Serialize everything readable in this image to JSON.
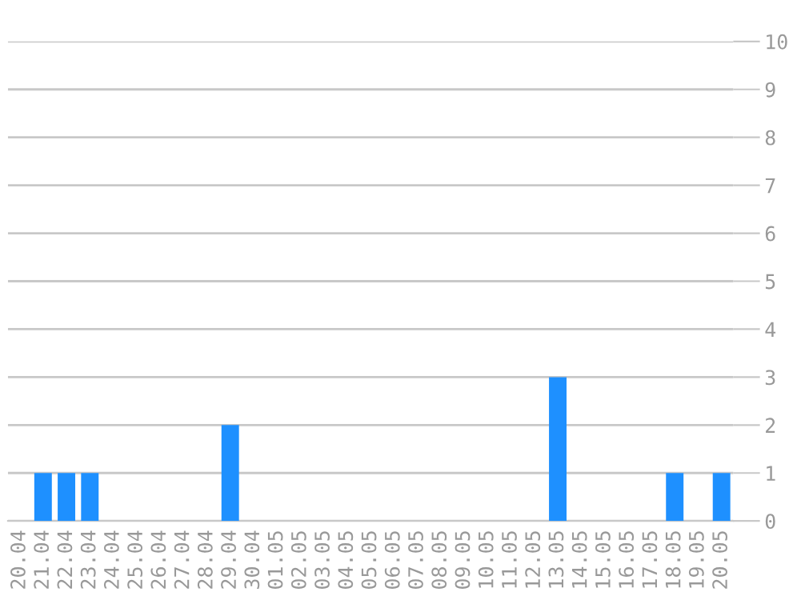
{
  "chart_data": {
    "type": "bar",
    "categories": [
      "20.04",
      "21.04",
      "22.04",
      "23.04",
      "24.04",
      "25.04",
      "26.04",
      "27.04",
      "28.04",
      "29.04",
      "30.04",
      "01.05",
      "02.05",
      "03.05",
      "04.05",
      "05.05",
      "06.05",
      "07.05",
      "08.05",
      "09.05",
      "10.05",
      "11.05",
      "12.05",
      "13.05",
      "14.05",
      "15.05",
      "16.05",
      "17.05",
      "18.05",
      "19.05",
      "20.05"
    ],
    "values": [
      0,
      1,
      1,
      1,
      0,
      0,
      0,
      0,
      0,
      2,
      0,
      0,
      0,
      0,
      0,
      0,
      0,
      0,
      0,
      0,
      0,
      0,
      0,
      3,
      0,
      0,
      0,
      0,
      1,
      0,
      1
    ],
    "color": "#1e90ff",
    "ylim": [
      0,
      10
    ],
    "yticks": [
      0,
      1,
      2,
      3,
      4,
      5,
      6,
      7,
      8,
      9,
      10
    ],
    "grid": "y"
  }
}
